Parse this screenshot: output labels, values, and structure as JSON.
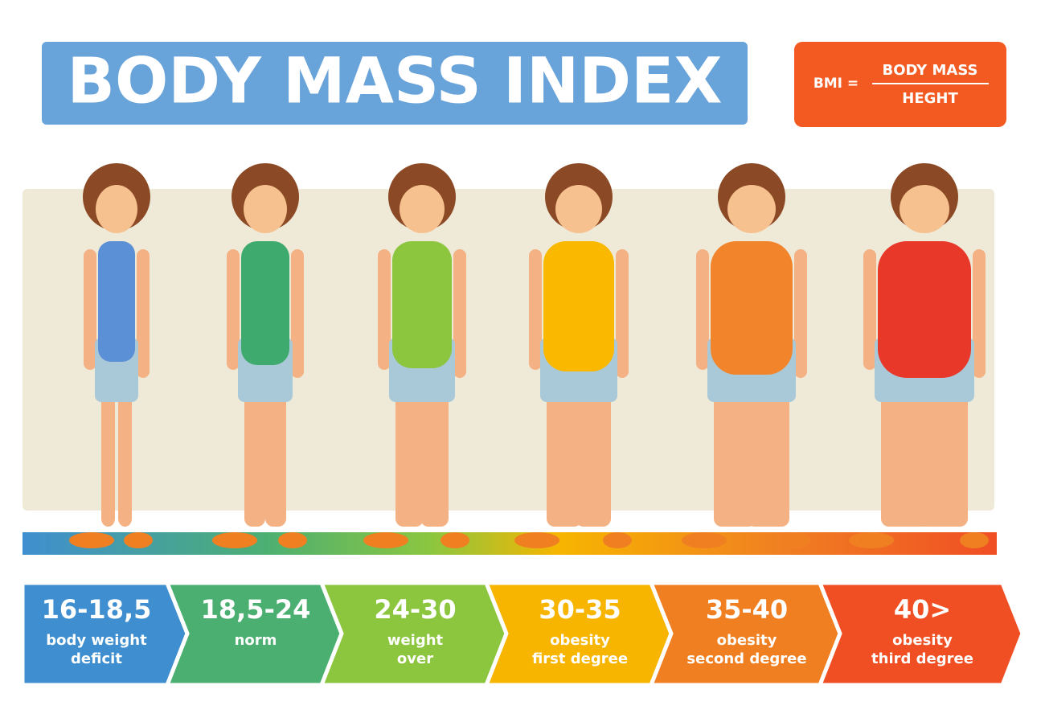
{
  "header": {
    "title": "BODY MASS INDEX"
  },
  "formula": {
    "lhs": "BMI =",
    "numerator": "BODY MASS",
    "denominator": "HEGHT"
  },
  "categories": [
    {
      "range": "16-18,5",
      "lines": [
        "body weight",
        "deficit"
      ]
    },
    {
      "range": "18,5-24",
      "lines": [
        "norm"
      ]
    },
    {
      "range": "24-30",
      "lines": [
        "weight",
        "over"
      ]
    },
    {
      "range": "30-35",
      "lines": [
        "obesity",
        "first degree"
      ]
    },
    {
      "range": "35-40",
      "lines": [
        "obesity",
        "second degree"
      ]
    },
    {
      "range": "40>",
      "lines": [
        "obesity",
        "third degree"
      ]
    }
  ]
}
